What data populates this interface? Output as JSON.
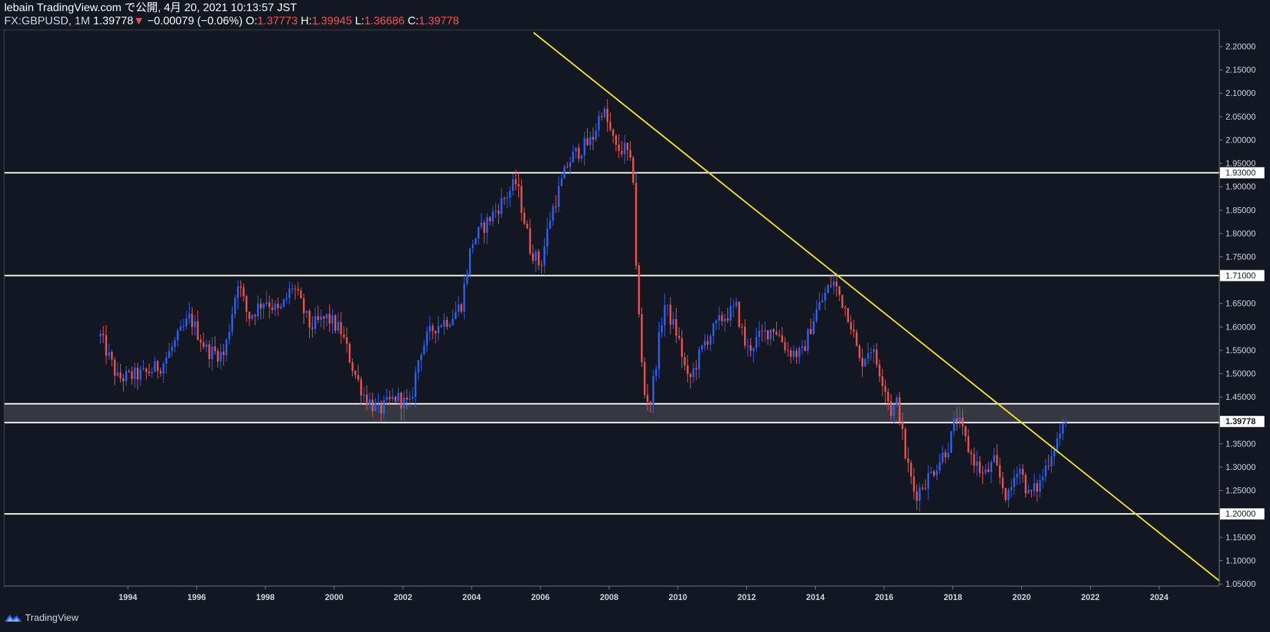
{
  "header": {
    "line1": "lebain TradingView.com で公開, 4月 20, 2021 10:13:57 JST",
    "symbol": "FX:GBPUSD, 1M",
    "last": "1.39778",
    "change_arrow": "▼",
    "change": "−0.00079 (−0.06%)",
    "o_label": "O:",
    "o": "1.37773",
    "h_label": "H:",
    "h": "1.39945",
    "l_label": "L:",
    "l": "1.36686",
    "c_label": "C:",
    "c": "1.39778"
  },
  "footer": {
    "brand": "TradingView",
    "icon": "tradingview-logo-icon"
  },
  "colors": {
    "background": "#131722",
    "up": "#2962ff",
    "down": "#ef5350",
    "trendline": "#f5e31f",
    "hline": "#ffffff",
    "zone": "#3a3c44"
  },
  "chart_data": {
    "type": "candlestick",
    "title": "",
    "xlabel": "",
    "ylabel": "",
    "ylim": [
      1.05,
      2.2
    ],
    "xlim": [
      1990.4,
      2025.75
    ],
    "y_ticks": [
      "1.05000",
      "1.10000",
      "1.15000",
      "1.20000",
      "1.25000",
      "1.30000",
      "1.35000",
      "1.45000",
      "1.50000",
      "1.55000",
      "1.60000",
      "1.65000",
      "1.75000",
      "1.80000",
      "1.85000",
      "1.90000",
      "1.95000",
      "2.00000",
      "2.05000",
      "2.10000",
      "2.15000",
      "2.20000"
    ],
    "x_ticks": [
      "1994",
      "1996",
      "1998",
      "2000",
      "2002",
      "2004",
      "2006",
      "2008",
      "2010",
      "2012",
      "2014",
      "2016",
      "2018",
      "2020",
      "2022",
      "2024"
    ],
    "horizontal_lines": [
      {
        "price": 1.93,
        "label": "1.93000"
      },
      {
        "price": 1.71,
        "label": "1.71000"
      },
      {
        "price": 1.2,
        "label": "1.20000"
      },
      {
        "price": 1.4357,
        "label": ""
      }
    ],
    "zone": {
      "from": 1.3955,
      "to": 1.4357
    },
    "last_price": {
      "price": 1.39778,
      "label": "1.39778"
    },
    "trendline": {
      "start": [
        2005.8,
        2.23
      ],
      "end": [
        2025.75,
        1.057
      ]
    },
    "anchors": [
      [
        1993.2,
        1.58
      ],
      [
        1993.7,
        1.49
      ],
      [
        1994.5,
        1.5
      ],
      [
        1995.0,
        1.52
      ],
      [
        1995.8,
        1.62
      ],
      [
        1996.3,
        1.55
      ],
      [
        1996.8,
        1.54
      ],
      [
        1997.2,
        1.7
      ],
      [
        1997.5,
        1.62
      ],
      [
        1998.0,
        1.66
      ],
      [
        1998.4,
        1.63
      ],
      [
        1998.8,
        1.69
      ],
      [
        1999.3,
        1.6
      ],
      [
        1999.8,
        1.62
      ],
      [
        2000.2,
        1.59
      ],
      [
        2000.6,
        1.5
      ],
      [
        2000.9,
        1.45
      ],
      [
        2001.3,
        1.42
      ],
      [
        2001.8,
        1.45
      ],
      [
        2002.2,
        1.43
      ],
      [
        2002.5,
        1.55
      ],
      [
        2002.9,
        1.6
      ],
      [
        2003.4,
        1.62
      ],
      [
        2003.7,
        1.65
      ],
      [
        2004.0,
        1.78
      ],
      [
        2004.5,
        1.83
      ],
      [
        2004.9,
        1.87
      ],
      [
        2005.3,
        1.91
      ],
      [
        2005.7,
        1.77
      ],
      [
        2006.0,
        1.73
      ],
      [
        2006.3,
        1.84
      ],
      [
        2006.8,
        1.95
      ],
      [
        2007.0,
        1.97
      ],
      [
        2007.5,
        2.0
      ],
      [
        2007.8,
        2.07
      ],
      [
        2008.2,
        1.98
      ],
      [
        2008.5,
        1.98
      ],
      [
        2008.7,
        1.92
      ],
      [
        2008.8,
        1.7
      ],
      [
        2009.0,
        1.46
      ],
      [
        2009.2,
        1.44
      ],
      [
        2009.6,
        1.65
      ],
      [
        2010.0,
        1.58
      ],
      [
        2010.3,
        1.48
      ],
      [
        2010.8,
        1.57
      ],
      [
        2011.3,
        1.62
      ],
      [
        2011.7,
        1.64
      ],
      [
        2012.0,
        1.55
      ],
      [
        2012.4,
        1.58
      ],
      [
        2012.8,
        1.6
      ],
      [
        2013.2,
        1.55
      ],
      [
        2013.6,
        1.54
      ],
      [
        2014.0,
        1.63
      ],
      [
        2014.5,
        1.7
      ],
      [
        2015.0,
        1.62
      ],
      [
        2015.3,
        1.52
      ],
      [
        2015.6,
        1.56
      ],
      [
        2016.0,
        1.48
      ],
      [
        2016.2,
        1.42
      ],
      [
        2016.4,
        1.44
      ],
      [
        2016.6,
        1.33
      ],
      [
        2016.9,
        1.24
      ],
      [
        2017.4,
        1.29
      ],
      [
        2017.9,
        1.35
      ],
      [
        2018.1,
        1.41
      ],
      [
        2018.5,
        1.33
      ],
      [
        2018.9,
        1.28
      ],
      [
        2019.2,
        1.31
      ],
      [
        2019.6,
        1.23
      ],
      [
        2019.9,
        1.31
      ],
      [
        2020.2,
        1.24
      ],
      [
        2020.5,
        1.26
      ],
      [
        2020.9,
        1.34
      ],
      [
        2021.3,
        1.39778
      ]
    ]
  }
}
